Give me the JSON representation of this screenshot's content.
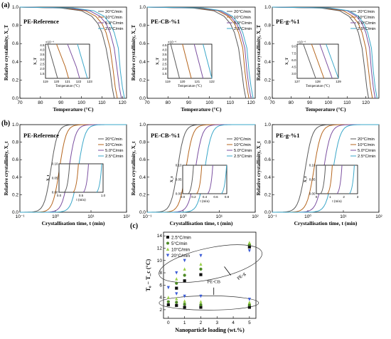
{
  "row_labels": {
    "a": "(a)",
    "b": "(b)",
    "c": "(c)"
  },
  "colors": {
    "r20": "#5a5a5a",
    "r10": "#b5651d",
    "r5": "#7b4fa0",
    "r25": "#3aa7c9",
    "c25": "#111111",
    "c5": "#4d8a26",
    "c10": "#9bd04a",
    "c20": "#3b5bd6",
    "frame": "#000000"
  },
  "legend_labels": [
    "20°C/min",
    "10°C/min",
    "5.0°C/min",
    "2.5°C/min"
  ],
  "chart_data": [
    {
      "id": "a1",
      "type": "line",
      "title": "PE-Reference",
      "xlabel": "Temperature (°C)",
      "ylabel": "Relative crystallinity, X_T",
      "xlim": [
        70,
        122
      ],
      "ylim": [
        0,
        1
      ],
      "xticks": [
        70,
        80,
        90,
        100,
        110,
        120
      ],
      "yticks": [
        0.0,
        0.2,
        0.4,
        0.6,
        0.8,
        1.0
      ],
      "series": [
        {
          "name": "20°C/min",
          "color_key": "r20",
          "x": [
            70,
            90,
            100,
            105,
            108,
            110,
            112,
            114,
            115,
            116
          ],
          "y": [
            1.0,
            0.99,
            0.96,
            0.9,
            0.82,
            0.72,
            0.55,
            0.3,
            0.12,
            0.0
          ]
        },
        {
          "name": "10°C/min",
          "color_key": "r10",
          "x": [
            70,
            92,
            102,
            107,
            110,
            112,
            114,
            115.5,
            116.5,
            117.5
          ],
          "y": [
            1.0,
            0.99,
            0.96,
            0.9,
            0.82,
            0.72,
            0.55,
            0.3,
            0.12,
            0.0
          ]
        },
        {
          "name": "5.0°C/min",
          "color_key": "r5",
          "x": [
            70,
            94,
            104,
            109,
            112,
            114,
            116,
            117.5,
            118.5,
            119.5
          ],
          "y": [
            1.0,
            0.99,
            0.96,
            0.9,
            0.82,
            0.72,
            0.55,
            0.3,
            0.12,
            0.0
          ]
        },
        {
          "name": "2.5°C/min",
          "color_key": "r25",
          "x": [
            70,
            96,
            106,
            111,
            114,
            116,
            118,
            119,
            120,
            121
          ],
          "y": [
            1.0,
            0.99,
            0.96,
            0.9,
            0.82,
            0.72,
            0.55,
            0.3,
            0.12,
            0.0
          ]
        }
      ],
      "inset": {
        "ylabel": "X_T",
        "xlabel": "Temperature (°C)",
        "y_exponent": "×10⁻⁴",
        "xlim": [
          119,
          123
        ],
        "ylim": [
          1,
          4.6
        ],
        "xticks": [
          119,
          120,
          121,
          122,
          123
        ],
        "yticks": [
          1.5,
          2.0,
          2.5,
          3.0,
          3.5,
          4.0,
          4.5
        ],
        "series_x": [
          [
            119.2,
            119.5,
            119.8,
            120.1
          ],
          [
            120.0,
            120.4,
            120.8,
            121.1
          ],
          [
            121.0,
            121.4,
            121.8,
            122.1
          ],
          [
            121.9,
            122.2,
            122.5,
            122.8
          ]
        ],
        "series_y": [
          4.6,
          3.4,
          2.2,
          1.0
        ]
      }
    },
    {
      "id": "a2",
      "type": "line",
      "title": "PE-CB-%1",
      "xlabel": "Temperature (°C)",
      "ylabel": "Relative crystallinity, X_T",
      "xlim": [
        70,
        122
      ],
      "ylim": [
        0,
        1
      ],
      "xticks": [
        70,
        80,
        90,
        100,
        110,
        120
      ],
      "yticks": [
        0.0,
        0.2,
        0.4,
        0.6,
        0.8,
        1.0
      ],
      "series": [
        {
          "name": "20°C/min",
          "color_key": "r20",
          "x": [
            70,
            92,
            102,
            107,
            110,
            112,
            114,
            115.5,
            116.5,
            117.5
          ],
          "y": [
            1.0,
            0.99,
            0.96,
            0.9,
            0.82,
            0.72,
            0.55,
            0.3,
            0.12,
            0.0
          ]
        },
        {
          "name": "10°C/min",
          "color_key": "r10",
          "x": [
            70,
            94,
            104,
            109,
            112,
            114,
            116,
            117,
            118,
            119
          ],
          "y": [
            1.0,
            0.99,
            0.96,
            0.9,
            0.82,
            0.72,
            0.55,
            0.3,
            0.12,
            0.0
          ]
        },
        {
          "name": "5.0°C/min",
          "color_key": "r5",
          "x": [
            70,
            96,
            105,
            110,
            113,
            115,
            117,
            118,
            119,
            120
          ],
          "y": [
            1.0,
            0.99,
            0.96,
            0.9,
            0.82,
            0.72,
            0.55,
            0.3,
            0.12,
            0.0
          ]
        },
        {
          "name": "2.5°C/min",
          "color_key": "r25",
          "x": [
            70,
            97,
            106,
            111,
            114,
            116,
            118,
            119,
            120,
            121
          ],
          "y": [
            1.0,
            0.99,
            0.96,
            0.9,
            0.82,
            0.72,
            0.55,
            0.3,
            0.12,
            0.0
          ]
        }
      ],
      "inset": {
        "ylabel": "X_T",
        "xlabel": "Temperature (°C)",
        "y_exponent": "×10⁻⁴",
        "xlim": [
          119,
          122
        ],
        "ylim": [
          1,
          4.6
        ],
        "xticks": [
          119,
          120,
          121,
          122
        ],
        "yticks": [
          1.5,
          2.0,
          2.5,
          3.0,
          3.5,
          4.0,
          4.5
        ],
        "series_x": [
          [
            119.2,
            119.4,
            119.6,
            119.8
          ],
          [
            120.0,
            120.2,
            120.4,
            120.6
          ],
          [
            120.8,
            121.0,
            121.2,
            121.4
          ],
          [
            121.4,
            121.6,
            121.8,
            122.0
          ]
        ],
        "series_y": [
          4.6,
          3.4,
          2.2,
          1.0
        ]
      }
    },
    {
      "id": "a3",
      "type": "line",
      "title": "PE-g-%1",
      "xlabel": "Temperature (°C)",
      "ylabel": "Relative crystallinity, X_T",
      "xlim": [
        70,
        127
      ],
      "ylim": [
        0,
        1
      ],
      "xticks": [
        70,
        80,
        90,
        100,
        110,
        120
      ],
      "yticks": [
        0.0,
        0.2,
        0.4,
        0.6,
        0.8,
        1.0
      ],
      "series": [
        {
          "name": "20°C/min",
          "color_key": "r20",
          "x": [
            70,
            96,
            106,
            111,
            114,
            116,
            118,
            119.5,
            120.5,
            121.5
          ],
          "y": [
            1.0,
            0.99,
            0.96,
            0.9,
            0.82,
            0.72,
            0.55,
            0.3,
            0.12,
            0.0
          ]
        },
        {
          "name": "10°C/min",
          "color_key": "r10",
          "x": [
            70,
            98,
            108,
            113,
            116,
            118,
            120,
            121.5,
            122.5,
            123.5
          ],
          "y": [
            1.0,
            0.99,
            0.96,
            0.9,
            0.82,
            0.72,
            0.55,
            0.3,
            0.12,
            0.0
          ]
        },
        {
          "name": "5.0°C/min",
          "color_key": "r5",
          "x": [
            70,
            100,
            110,
            115,
            118,
            120,
            122,
            123,
            124,
            125
          ],
          "y": [
            1.0,
            0.99,
            0.96,
            0.9,
            0.82,
            0.72,
            0.55,
            0.3,
            0.12,
            0.0
          ]
        },
        {
          "name": "2.5°C/min",
          "color_key": "r25",
          "x": [
            70,
            101,
            111,
            116,
            119,
            121,
            123,
            124,
            125,
            126
          ],
          "y": [
            1.0,
            0.99,
            0.96,
            0.9,
            0.82,
            0.72,
            0.55,
            0.3,
            0.12,
            0.0
          ]
        }
      ],
      "inset": {
        "ylabel": "X_T",
        "xlabel": "Temperature (°C)",
        "y_exponent": "×10⁻⁴",
        "xlim": [
          127,
          129
        ],
        "ylim": [
          2,
          9.5
        ],
        "xticks": [
          127,
          128,
          129
        ],
        "yticks": [
          3.0,
          4.5,
          6.0,
          7.5,
          9.0
        ],
        "series_x": [
          [
            127.3,
            127.5,
            127.7,
            127.9
          ],
          [
            127.7,
            127.9,
            128.1,
            128.3
          ],
          [
            128.1,
            128.3,
            128.5,
            128.7
          ],
          [
            128.4,
            128.6,
            128.8,
            129.0
          ]
        ],
        "series_y": [
          9.5,
          7.0,
          4.5,
          2.0
        ]
      }
    },
    {
      "id": "b1",
      "type": "line",
      "title": "PE-Reference",
      "xlabel": "Crystallisation time, t (min)",
      "ylabel": "Relative crystallinity, X_t",
      "x_scale": "log",
      "xlim": [
        0.1,
        100
      ],
      "ylim": [
        0,
        1
      ],
      "xticks": [
        "10⁻¹",
        "10⁰",
        "10¹",
        "10²"
      ],
      "yticks": [
        0.0,
        0.2,
        0.4,
        0.6,
        0.8,
        1.0
      ],
      "series": [
        {
          "name": "20°C/min",
          "color_key": "r20",
          "t50": 0.75,
          "width": 0.28
        },
        {
          "name": "10°C/min",
          "color_key": "r10",
          "t50": 1.3,
          "width": 0.28
        },
        {
          "name": "5.0°C/min",
          "color_key": "r5",
          "t50": 2.4,
          "width": 0.28
        },
        {
          "name": "2.5°C/min",
          "color_key": "r25",
          "t50": 4.4,
          "width": 0.28
        }
      ],
      "inset": {
        "ylabel": "X_t",
        "xlabel": "t (min)",
        "xlim": [
          0,
          1.0
        ],
        "ylim": [
          0,
          0.1
        ],
        "xticks": [
          "0.0",
          "0.5",
          "1.0"
        ],
        "yticks": [
          "0.00",
          "0.05",
          "0.10"
        ],
        "onsets": [
          0.12,
          0.32,
          0.55,
          0.85
        ]
      }
    },
    {
      "id": "b2",
      "type": "line",
      "title": "PE-CB-%1",
      "xlabel": "Crystallisation time, t (min)",
      "ylabel": "Relative crystallinity, X_t",
      "x_scale": "log",
      "xlim": [
        0.1,
        100
      ],
      "ylim": [
        0,
        1
      ],
      "xticks": [
        "10⁻¹",
        "10⁰",
        "10¹",
        "10²"
      ],
      "yticks": [
        0.0,
        0.2,
        0.4,
        0.6,
        0.8,
        1.0
      ],
      "series": [
        {
          "name": "20°C/min",
          "color_key": "r20",
          "t50": 0.7,
          "width": 0.28
        },
        {
          "name": "10°C/min",
          "color_key": "r10",
          "t50": 1.2,
          "width": 0.28
        },
        {
          "name": "5.0°C/min",
          "color_key": "r5",
          "t50": 2.2,
          "width": 0.28
        },
        {
          "name": "2.5°C/min",
          "color_key": "r25",
          "t50": 4.0,
          "width": 0.28
        }
      ],
      "inset": {
        "ylabel": "X_t",
        "xlabel": "t (min)",
        "xlim": [
          0,
          0.8
        ],
        "ylim": [
          0,
          0.1
        ],
        "xticks": [
          "0.0",
          "0.2",
          "0.4",
          "0.6",
          "0.8"
        ],
        "yticks": [
          "0.00",
          "0.05",
          "0.10"
        ],
        "onsets": [
          0.1,
          0.25,
          0.45,
          0.7
        ]
      }
    },
    {
      "id": "b3",
      "type": "line",
      "title": "PE-g-%1",
      "xlabel": "Crystallisation time, t (min)",
      "ylabel": "Relative crystallinity, X_t",
      "x_scale": "log",
      "xlim": [
        0.1,
        100
      ],
      "ylim": [
        0,
        1
      ],
      "xticks": [
        "10⁻¹",
        "10⁰",
        "10¹",
        "10²"
      ],
      "yticks": [
        0.0,
        0.2,
        0.4,
        0.6,
        0.8,
        1.0
      ],
      "series": [
        {
          "name": "20°C/min",
          "color_key": "r20",
          "t50": 0.85,
          "width": 0.3
        },
        {
          "name": "10°C/min",
          "color_key": "r10",
          "t50": 1.5,
          "width": 0.3
        },
        {
          "name": "5.0°C/min",
          "color_key": "r5",
          "t50": 2.8,
          "width": 0.3
        },
        {
          "name": "2.5°C/min",
          "color_key": "r25",
          "t50": 5.2,
          "width": 0.3
        }
      ],
      "inset": {
        "ylabel": "X_t",
        "xlabel": "t (min)",
        "xlim": [
          0,
          3
        ],
        "ylim": [
          0,
          0.1
        ],
        "xticks": [
          "0",
          "1",
          "2",
          "3"
        ],
        "yticks": [
          "0.00",
          "0.05",
          "0.10"
        ],
        "onsets": [
          0.3,
          0.8,
          1.5,
          2.4
        ]
      }
    },
    {
      "id": "c",
      "type": "scatter",
      "xlabel": "Nanoparticle loading (wt.%)",
      "ylabel": "T₀ − T_c (°C)",
      "xlim": [
        -0.3,
        5.4
      ],
      "ylim": [
        0.6,
        14.6
      ],
      "xticks": [
        0,
        1,
        2,
        3,
        4,
        5
      ],
      "yticks": [
        2,
        4,
        6,
        8,
        10,
        12,
        14
      ],
      "legend": [
        "2.5°C/min",
        "5°C/min",
        "10°C/min",
        "20°C/min"
      ],
      "series": [
        {
          "name": "2.5°C/min",
          "color_key": "c25",
          "marker": "square",
          "x": [
            0,
            0.5,
            0.5,
            1,
            1,
            2,
            2,
            5,
            5
          ],
          "y": [
            2.8,
            2.7,
            5.5,
            2.4,
            6.7,
            2.4,
            7.7,
            2.4,
            12.2
          ]
        },
        {
          "name": "5°C/min",
          "color_key": "c5",
          "marker": "circle",
          "x": [
            0,
            0.5,
            0.5,
            1,
            1,
            2,
            2,
            5,
            5
          ],
          "y": [
            3.3,
            3.2,
            6.3,
            2.9,
            7.6,
            2.8,
            8.6,
            2.8,
            12.6
          ]
        },
        {
          "name": "10°C/min",
          "color_key": "c10",
          "marker": "triangle-up",
          "x": [
            0,
            0.5,
            0.5,
            1,
            1,
            2,
            2,
            5,
            5
          ],
          "y": [
            4.0,
            3.8,
            7.0,
            3.4,
            8.6,
            3.3,
            9.4,
            3.2,
            12.9
          ]
        },
        {
          "name": "20°C/min",
          "color_key": "c20",
          "marker": "triangle-down",
          "x": [
            0,
            0.5,
            0.5,
            1,
            1,
            2,
            2,
            5,
            5
          ],
          "y": [
            5.6,
            4.6,
            8.0,
            4.2,
            10.0,
            4.2,
            10.8,
            3.7,
            11.6
          ]
        }
      ],
      "annotations": [
        "PE-g",
        "PE-CB"
      ]
    }
  ]
}
